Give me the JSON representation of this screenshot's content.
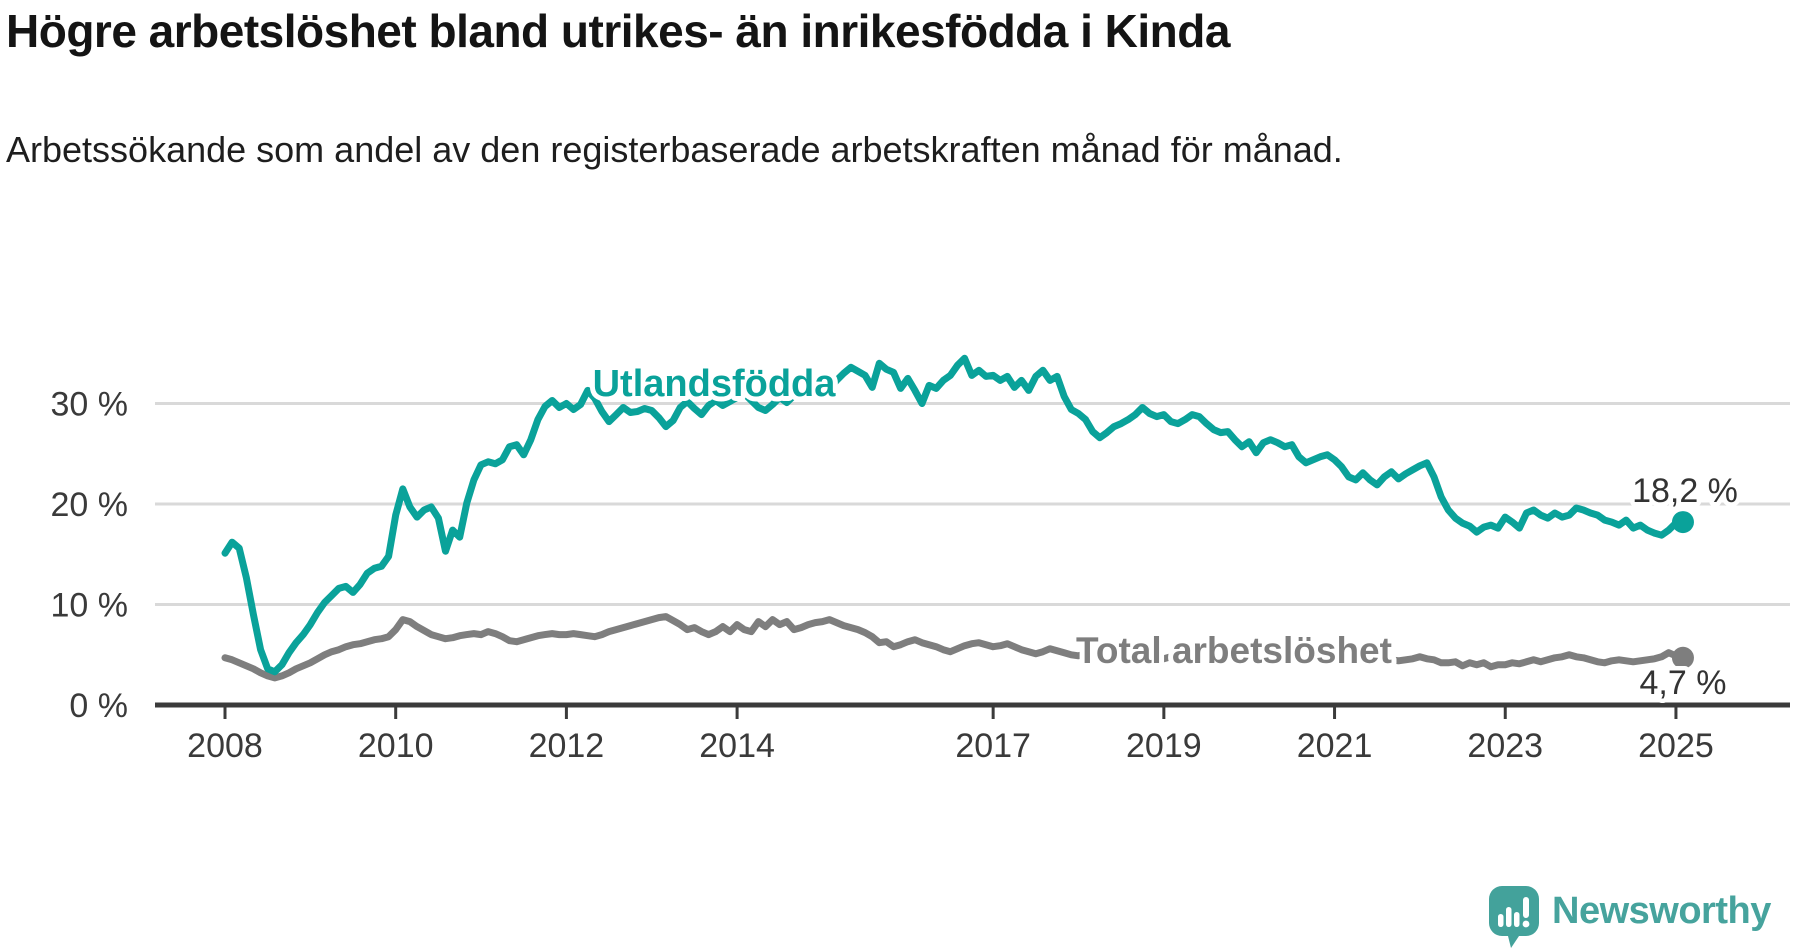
{
  "header": {
    "title": "Högre arbetslöshet bland utrikes- än inrikesfödda i Kinda",
    "subtitle": "Arbetssökande som andel av den registerbaserade arbetskraften månad för månad."
  },
  "chart_data": {
    "type": "line",
    "title": "Högre arbetslöshet bland utrikes- än inrikesfödda i Kinda",
    "x_unit": "month",
    "x_start": "2008-01",
    "x_end": "2025-02",
    "ylim": [
      0,
      36
    ],
    "grid": "horizontal",
    "legend_position": "inline-labels",
    "y_ticks": [
      {
        "value": 30,
        "label": "30 %"
      },
      {
        "value": 20,
        "label": "20 %"
      },
      {
        "value": 10,
        "label": "10 %"
      },
      {
        "value": 0,
        "label": "0 %"
      }
    ],
    "x_ticks": [
      {
        "year": 2008,
        "label": "2008"
      },
      {
        "year": 2010,
        "label": "2010"
      },
      {
        "year": 2012,
        "label": "2012"
      },
      {
        "year": 2014,
        "label": "2014"
      },
      {
        "year": 2017,
        "label": "2017"
      },
      {
        "year": 2019,
        "label": "2019"
      },
      {
        "year": 2021,
        "label": "2021"
      },
      {
        "year": 2023,
        "label": "2023"
      },
      {
        "year": 2025,
        "label": "2025"
      }
    ],
    "series": [
      {
        "name": "Utlandsfödda",
        "color": "#0aa29a",
        "end_value": 18.2,
        "end_label": "18,2 %",
        "values": [
          15.1,
          16.2,
          15.6,
          12.7,
          9.0,
          5.5,
          3.6,
          3.3,
          4.0,
          5.2,
          6.2,
          7.0,
          8.0,
          9.2,
          10.2,
          10.9,
          11.6,
          11.8,
          11.2,
          12.0,
          13.1,
          13.6,
          13.8,
          14.8,
          18.9,
          21.5,
          19.7,
          18.7,
          19.4,
          19.7,
          18.6,
          15.3,
          17.4,
          16.7,
          20.1,
          22.4,
          23.9,
          24.2,
          24.0,
          24.4,
          25.7,
          25.9,
          24.9,
          26.4,
          28.4,
          29.7,
          30.3,
          29.6,
          30.0,
          29.4,
          29.9,
          31.3,
          30.5,
          29.2,
          28.2,
          28.9,
          29.6,
          29.1,
          29.2,
          29.5,
          29.3,
          28.6,
          27.7,
          28.3,
          29.6,
          30.2,
          29.5,
          28.9,
          29.8,
          30.3,
          29.8,
          30.2,
          30.6,
          31.0,
          30.3,
          29.6,
          29.3,
          29.9,
          30.6,
          30.1,
          30.8,
          31.4,
          31.9,
          32.4,
          32.0,
          31.5,
          32.3,
          33.0,
          33.6,
          33.2,
          32.8,
          31.6,
          34.0,
          33.4,
          33.1,
          31.5,
          32.5,
          31.3,
          30.0,
          31.8,
          31.5,
          32.3,
          32.8,
          33.8,
          34.5,
          32.8,
          33.3,
          32.7,
          32.8,
          32.3,
          32.7,
          31.6,
          32.3,
          31.3,
          32.7,
          33.3,
          32.3,
          32.7,
          30.7,
          29.4,
          29.0,
          28.4,
          27.2,
          26.6,
          27.1,
          27.7,
          28.0,
          28.4,
          28.9,
          29.6,
          29.0,
          28.7,
          28.9,
          28.2,
          28.0,
          28.4,
          28.9,
          28.7,
          28.0,
          27.4,
          27.1,
          27.2,
          26.4,
          25.7,
          26.2,
          25.1,
          26.1,
          26.4,
          26.1,
          25.7,
          25.9,
          24.7,
          24.1,
          24.4,
          24.7,
          24.9,
          24.4,
          23.7,
          22.7,
          22.4,
          23.1,
          22.4,
          21.9,
          22.7,
          23.2,
          22.5,
          23.0,
          23.4,
          23.8,
          24.1,
          22.7,
          20.7,
          19.4,
          18.6,
          18.1,
          17.8,
          17.2,
          17.7,
          17.9,
          17.6,
          18.7,
          18.2,
          17.6,
          19.1,
          19.4,
          18.9,
          18.6,
          19.1,
          18.7,
          18.9,
          19.6,
          19.4,
          19.1,
          18.9,
          18.4,
          18.2,
          17.9,
          18.4,
          17.6,
          17.9,
          17.4,
          17.1,
          16.9,
          17.4,
          18.1,
          18.2
        ]
      },
      {
        "name": "Total arbetslöshet",
        "color": "#7e7e7e",
        "end_value": 4.7,
        "end_label": "4,7 %",
        "values": [
          4.7,
          4.5,
          4.2,
          3.9,
          3.6,
          3.2,
          2.9,
          2.7,
          2.9,
          3.2,
          3.6,
          3.9,
          4.2,
          4.6,
          5.0,
          5.3,
          5.5,
          5.8,
          6.0,
          6.1,
          6.3,
          6.5,
          6.6,
          6.8,
          7.5,
          8.5,
          8.3,
          7.8,
          7.4,
          7.0,
          6.8,
          6.6,
          6.7,
          6.9,
          7.0,
          7.1,
          7.0,
          7.3,
          7.1,
          6.8,
          6.4,
          6.3,
          6.5,
          6.7,
          6.9,
          7.0,
          7.1,
          7.0,
          7.0,
          7.1,
          7.0,
          6.9,
          6.8,
          7.0,
          7.3,
          7.5,
          7.7,
          7.9,
          8.1,
          8.3,
          8.5,
          8.7,
          8.8,
          8.4,
          8.0,
          7.5,
          7.7,
          7.3,
          7.0,
          7.3,
          7.8,
          7.3,
          8.0,
          7.5,
          7.3,
          8.3,
          7.8,
          8.5,
          8.0,
          8.3,
          7.5,
          7.7,
          8.0,
          8.2,
          8.3,
          8.5,
          8.2,
          7.9,
          7.7,
          7.5,
          7.2,
          6.8,
          6.2,
          6.3,
          5.8,
          6.0,
          6.3,
          6.5,
          6.2,
          6.0,
          5.8,
          5.5,
          5.3,
          5.6,
          5.9,
          6.1,
          6.2,
          6.0,
          5.8,
          5.9,
          6.1,
          5.8,
          5.5,
          5.3,
          5.1,
          5.3,
          5.6,
          5.4,
          5.2,
          5.0,
          4.9,
          5.1,
          5.3,
          5.0,
          4.8,
          4.6,
          4.5,
          4.7,
          4.9,
          5.0,
          4.8,
          4.7,
          4.6,
          4.8,
          4.9,
          4.7,
          4.5,
          4.4,
          4.6,
          4.8,
          5.0,
          4.9,
          4.8,
          4.9,
          5.0,
          5.2,
          5.5,
          5.8,
          5.9,
          6.0,
          5.8,
          5.6,
          5.5,
          5.3,
          5.2,
          5.4,
          5.5,
          5.6,
          5.4,
          5.2,
          5.0,
          4.9,
          4.7,
          4.6,
          4.5,
          4.4,
          4.5,
          4.6,
          4.8,
          4.6,
          4.5,
          4.2,
          4.2,
          4.3,
          3.9,
          4.2,
          4.0,
          4.2,
          3.8,
          4.0,
          4.0,
          4.2,
          4.1,
          4.3,
          4.5,
          4.3,
          4.5,
          4.7,
          4.8,
          5.0,
          4.8,
          4.7,
          4.5,
          4.3,
          4.2,
          4.4,
          4.5,
          4.4,
          4.3,
          4.4,
          4.5,
          4.6,
          4.8,
          5.2,
          4.9,
          4.7
        ]
      }
    ]
  },
  "annotations": {
    "utlandsfodda_label": "Utlandsfödda",
    "total_label": "Total arbetslöshet",
    "teal_end_label": "18,2 %",
    "gray_end_label": "4,7 %"
  },
  "footer": {
    "brand": "Newsworthy"
  },
  "colors": {
    "teal": "#0aa29a",
    "gray": "#7e7e7e",
    "grid": "#d9d9d9",
    "axis": "#3b3b3b",
    "tick_label": "#3a3a3a",
    "value_label": "#333333",
    "brand_teal": "#46a39d",
    "brand_icon": "#43a29b"
  }
}
